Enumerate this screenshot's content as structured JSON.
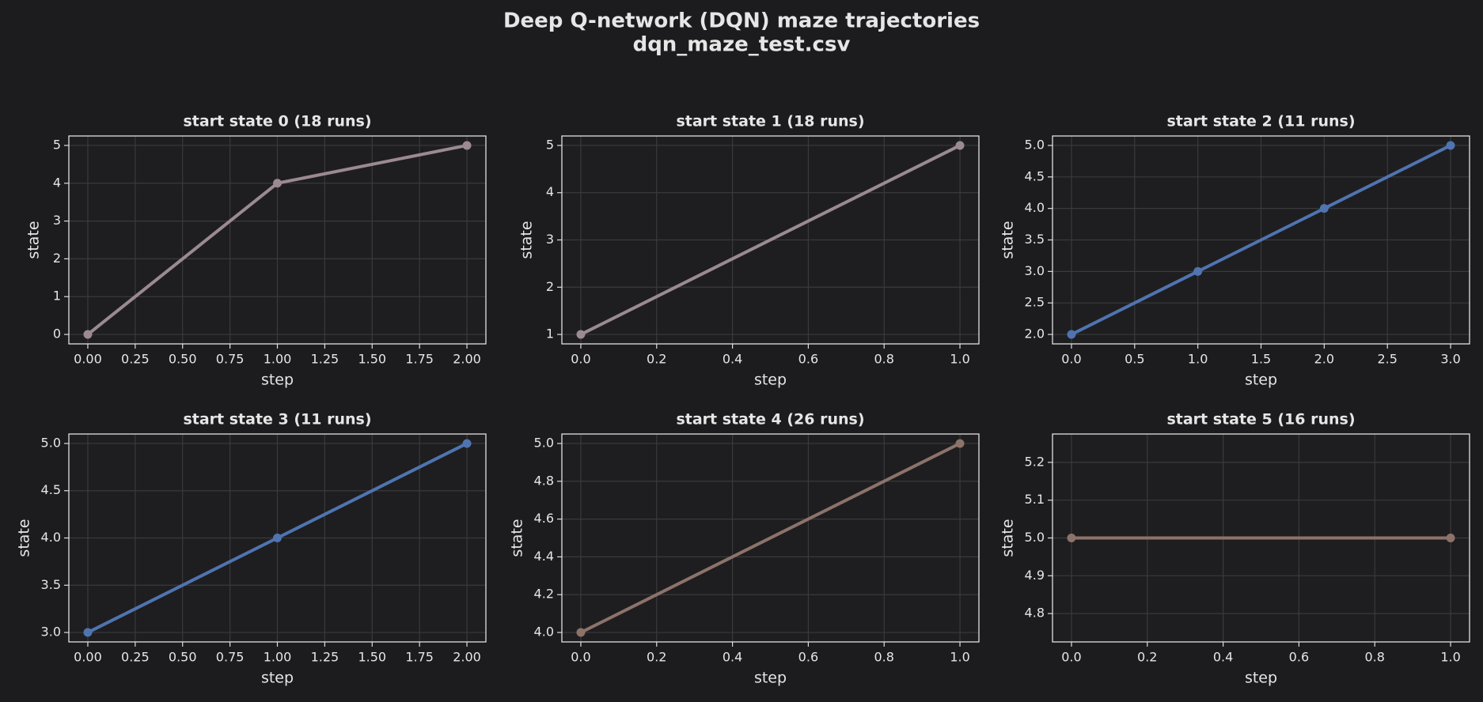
{
  "title": "Deep Q-network (DQN) maze trajectories",
  "subtitle": "dqn_maze_test.csv",
  "chart_data": [
    {
      "type": "line",
      "title": "start state 0  (18 runs)",
      "xlabel": "step",
      "ylabel": "state",
      "grid": true,
      "x": [
        0,
        1,
        2
      ],
      "values": [
        0,
        4,
        5
      ],
      "color": "#9b8a90",
      "xlim": [
        -0.1,
        2.1
      ],
      "ylim": [
        -0.25,
        5.25
      ],
      "xticks": [
        {
          "value": 0,
          "label": "0.00"
        },
        0.25,
        {
          "value": 0.5,
          "label": "0.50"
        },
        0.75,
        {
          "value": 1,
          "label": "1.00"
        },
        1.25,
        {
          "value": 1.5,
          "label": "1.50"
        },
        1.75,
        {
          "value": 2,
          "label": "2.00"
        }
      ],
      "yticks": [
        0,
        1,
        2,
        3,
        4,
        5
      ]
    },
    {
      "type": "line",
      "title": "start state 1  (18 runs)",
      "xlabel": "step",
      "ylabel": "state",
      "grid": true,
      "x": [
        0,
        1
      ],
      "values": [
        1,
        5
      ],
      "color": "#9b8a90",
      "xlim": [
        -0.05,
        1.05
      ],
      "ylim": [
        0.8,
        5.2
      ],
      "xticks": [
        {
          "value": 0,
          "label": "0.0"
        },
        0.2,
        0.4,
        0.6,
        0.8,
        {
          "value": 1,
          "label": "1.0"
        }
      ],
      "yticks": [
        1,
        2,
        3,
        4,
        5
      ]
    },
    {
      "type": "line",
      "title": "start state 2  (11 runs)",
      "xlabel": "step",
      "ylabel": "state",
      "grid": true,
      "x": [
        0,
        1,
        2,
        3
      ],
      "values": [
        2,
        3,
        4,
        5
      ],
      "color": "#4f74b0",
      "xlim": [
        -0.15,
        3.15
      ],
      "ylim": [
        1.85,
        5.15
      ],
      "xticks": [
        {
          "value": 0,
          "label": "0.0"
        },
        0.5,
        {
          "value": 1,
          "label": "1.0"
        },
        1.5,
        {
          "value": 2,
          "label": "2.0"
        },
        2.5,
        {
          "value": 3,
          "label": "3.0"
        }
      ],
      "yticks": [
        {
          "value": 2,
          "label": "2.0"
        },
        2.5,
        {
          "value": 3,
          "label": "3.0"
        },
        3.5,
        {
          "value": 4,
          "label": "4.0"
        },
        4.5,
        {
          "value": 5,
          "label": "5.0"
        }
      ]
    },
    {
      "type": "line",
      "title": "start state 3  (11 runs)",
      "xlabel": "step",
      "ylabel": "state",
      "grid": true,
      "x": [
        0,
        1,
        2
      ],
      "values": [
        3,
        4,
        5
      ],
      "color": "#4f74b0",
      "xlim": [
        -0.1,
        2.1
      ],
      "ylim": [
        2.9,
        5.1
      ],
      "xticks": [
        {
          "value": 0,
          "label": "0.00"
        },
        0.25,
        {
          "value": 0.5,
          "label": "0.50"
        },
        0.75,
        {
          "value": 1,
          "label": "1.00"
        },
        1.25,
        {
          "value": 1.5,
          "label": "1.50"
        },
        1.75,
        {
          "value": 2,
          "label": "2.00"
        }
      ],
      "yticks": [
        {
          "value": 3,
          "label": "3.0"
        },
        3.5,
        {
          "value": 4,
          "label": "4.0"
        },
        4.5,
        {
          "value": 5,
          "label": "5.0"
        }
      ]
    },
    {
      "type": "line",
      "title": "start state 4  (26 runs)",
      "xlabel": "step",
      "ylabel": "state",
      "grid": true,
      "x": [
        0,
        1
      ],
      "values": [
        4,
        5
      ],
      "color": "#8c736a",
      "xlim": [
        -0.05,
        1.05
      ],
      "ylim": [
        3.95,
        5.05
      ],
      "xticks": [
        {
          "value": 0,
          "label": "0.0"
        },
        0.2,
        0.4,
        0.6,
        0.8,
        {
          "value": 1,
          "label": "1.0"
        }
      ],
      "yticks": [
        {
          "value": 4,
          "label": "4.0"
        },
        4.2,
        4.4,
        4.6,
        4.8,
        {
          "value": 5,
          "label": "5.0"
        }
      ]
    },
    {
      "type": "line",
      "title": "start state 5  (16 runs)",
      "xlabel": "step",
      "ylabel": "state",
      "grid": true,
      "x": [
        0,
        1
      ],
      "values": [
        5,
        5
      ],
      "color": "#8c736a",
      "xlim": [
        -0.05,
        1.05
      ],
      "ylim": [
        4.725,
        5.275
      ],
      "xticks": [
        {
          "value": 0,
          "label": "0.0"
        },
        0.2,
        0.4,
        0.6,
        0.8,
        {
          "value": 1,
          "label": "1.0"
        }
      ],
      "yticks": [
        4.8,
        4.9,
        {
          "value": 5,
          "label": "5.0"
        },
        5.1,
        5.2
      ]
    }
  ]
}
